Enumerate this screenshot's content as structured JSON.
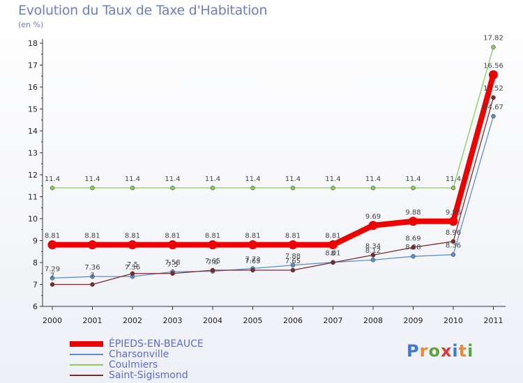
{
  "chart_data": {
    "type": "line",
    "title": "Evolution du Taux de Taxe d'Habitation",
    "ylabel": "(en %)",
    "xlabel": "",
    "x": [
      "2000",
      "2001",
      "2002",
      "2003",
      "2004",
      "2005",
      "2006",
      "2007",
      "2008",
      "2009",
      "2010",
      "2011"
    ],
    "ylim": [
      6,
      18
    ],
    "yticks": [
      "6",
      "7",
      "8",
      "9",
      "10",
      "11",
      "12",
      "13",
      "14",
      "15",
      "16",
      "17",
      "18"
    ],
    "grid": false,
    "legend_position": "bottom-left",
    "series": [
      {
        "name": "ÉPIEDS-EN-BEAUCE",
        "color": "#ee0000",
        "values": [
          8.81,
          8.81,
          8.81,
          8.81,
          8.81,
          8.81,
          8.81,
          8.81,
          9.69,
          9.88,
          9.88,
          16.56
        ],
        "labels": [
          "8.81",
          "8.81",
          "8.81",
          "8.81",
          "8.81",
          "8.81",
          "8.81",
          "8.81",
          "9.69",
          "9.88",
          "9.88",
          "16.56"
        ]
      },
      {
        "name": "Charsonville",
        "color": "#5b8fcc",
        "values": [
          7.29,
          7.36,
          7.36,
          7.58,
          7.6,
          7.73,
          7.88,
          8.01,
          8.12,
          8.28,
          8.36,
          14.67
        ],
        "labels": [
          "7.29",
          "7.36",
          "7.36",
          "7.58",
          "7.6",
          "7.73",
          "7.88",
          "8.01",
          "8.12",
          "8.28",
          "8.36",
          "14.67"
        ]
      },
      {
        "name": "Coulmiers",
        "color": "#88cc55",
        "values": [
          11.4,
          11.4,
          11.4,
          11.4,
          11.4,
          11.4,
          11.4,
          11.4,
          11.4,
          11.4,
          11.4,
          17.82
        ],
        "labels": [
          "11.4",
          "11.4",
          "11.4",
          "11.4",
          "11.4",
          "11.4",
          "11.4",
          "11.4",
          "11.4",
          "11.4",
          "11.4",
          "17.82"
        ]
      },
      {
        "name": "Saint-Sigismond",
        "color": "#7a2a2a",
        "values": [
          7.0,
          7.0,
          7.5,
          7.5,
          7.65,
          7.65,
          7.65,
          8.0,
          8.34,
          8.69,
          8.96,
          15.52
        ],
        "labels": [
          "7",
          "7",
          "7.5",
          "7.5",
          "7.65",
          "7.65",
          "7.65",
          "8",
          "8.34",
          "8.69",
          "8.96",
          "15.52"
        ]
      }
    ]
  },
  "logo": {
    "text": "Proxiti",
    "letter_colors": [
      "#3a7ad8",
      "#ee8833",
      "#5aa83a",
      "#d83a3a",
      "#3a7ad8",
      "#ee8833",
      "#5aa83a"
    ]
  }
}
